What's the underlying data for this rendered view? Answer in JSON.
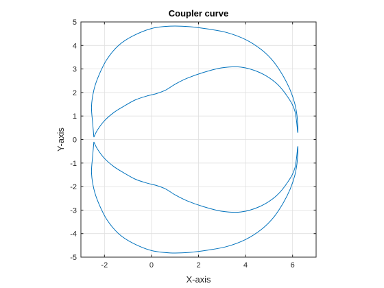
{
  "chart_data": {
    "type": "line",
    "title": "Coupler curve",
    "xlabel": "X-axis",
    "ylabel": "Y-axis",
    "xlim": [
      -3,
      7
    ],
    "ylim": [
      -5,
      5
    ],
    "xticks": [
      -2,
      0,
      2,
      4,
      6
    ],
    "yticks": [
      -5,
      -4,
      -3,
      -2,
      -1,
      0,
      1,
      2,
      3,
      4,
      5
    ],
    "xtick_labels": [
      "-2",
      "0",
      "2",
      "4",
      "6"
    ],
    "ytick_labels": [
      "-5",
      "-4",
      "-3",
      "-2",
      "-1",
      "0",
      "1",
      "2",
      "3",
      "4",
      "5"
    ],
    "grid": true,
    "line_color": "#0072bd",
    "series": [
      {
        "x": [
          -2.45,
          -2.5,
          -2.55,
          -2.45,
          -2.25,
          -1.9,
          -1.4,
          -0.8,
          0,
          0.8,
          1.6,
          2.4,
          3.2,
          4,
          4.7,
          5.2,
          5.6,
          5.9,
          6.1,
          6.2,
          6.22,
          6.1,
          5.8,
          5.3,
          4.6,
          3.8,
          3,
          2.2,
          1.5,
          1,
          0.6,
          0.2,
          -0.2,
          -0.7,
          -1.2,
          -1.6,
          -2,
          -2.3,
          -2.45
        ],
        "y": [
          0.1,
          0.7,
          1.4,
          2.1,
          2.7,
          3.4,
          4.0,
          4.4,
          4.72,
          4.82,
          4.8,
          4.7,
          4.55,
          4.25,
          3.8,
          3.3,
          2.7,
          2.1,
          1.5,
          0.9,
          0.3,
          1.2,
          1.8,
          2.4,
          2.85,
          3.08,
          3.05,
          2.85,
          2.6,
          2.35,
          2.1,
          1.95,
          1.85,
          1.68,
          1.4,
          1.15,
          0.8,
          0.4,
          0.1
        ]
      },
      {
        "x": [
          -2.45,
          -2.5,
          -2.55,
          -2.45,
          -2.25,
          -1.9,
          -1.4,
          -0.8,
          0,
          0.8,
          1.6,
          2.4,
          3.2,
          4,
          4.7,
          5.2,
          5.6,
          5.9,
          6.1,
          6.2,
          6.22,
          6.1,
          5.8,
          5.3,
          4.6,
          3.8,
          3,
          2.2,
          1.5,
          1,
          0.6,
          0.2,
          -0.2,
          -0.7,
          -1.2,
          -1.6,
          -2,
          -2.3,
          -2.45
        ],
        "y": [
          -0.1,
          -0.7,
          -1.4,
          -2.1,
          -2.7,
          -3.4,
          -4.0,
          -4.4,
          -4.72,
          -4.82,
          -4.8,
          -4.7,
          -4.55,
          -4.25,
          -3.8,
          -3.3,
          -2.7,
          -2.1,
          -1.5,
          -0.9,
          -0.3,
          -1.2,
          -1.8,
          -2.4,
          -2.85,
          -3.08,
          -3.05,
          -2.85,
          -2.6,
          -2.35,
          -2.1,
          -1.95,
          -1.85,
          -1.68,
          -1.4,
          -1.15,
          -0.8,
          -0.4,
          -0.1
        ]
      }
    ]
  }
}
